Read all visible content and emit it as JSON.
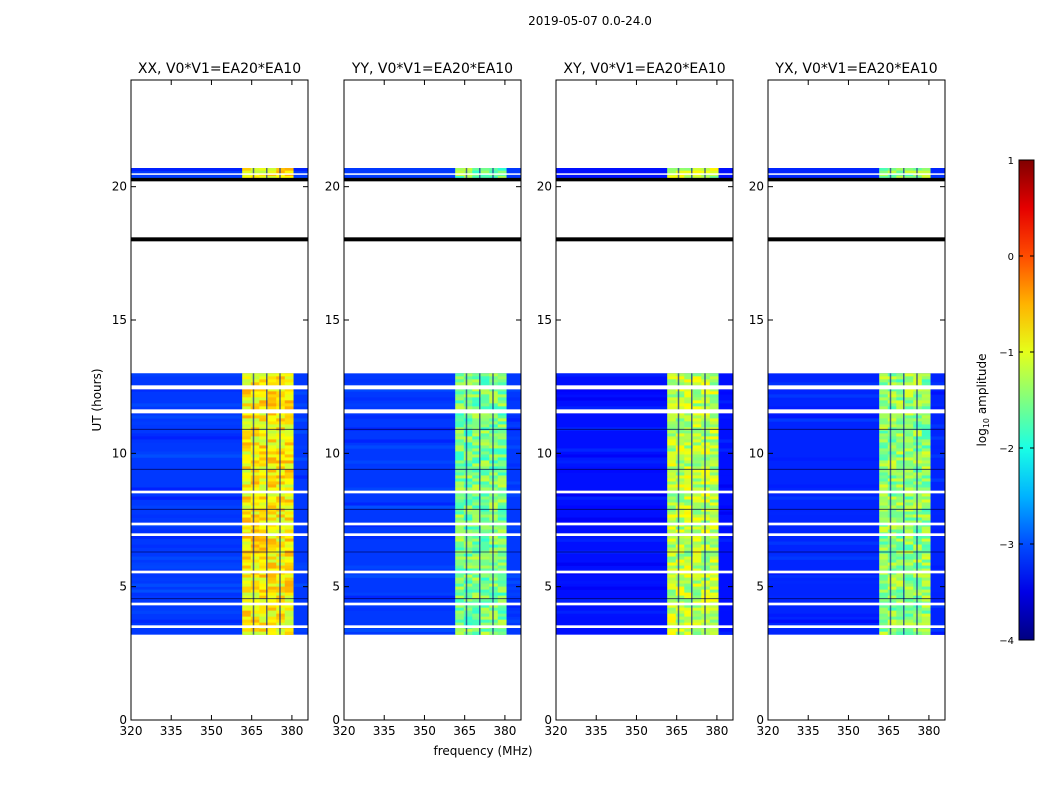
{
  "suptitle": "2019-05-07 0.0-24.0",
  "chart_data": {
    "type": "heatmap",
    "title": "2019-05-07 0.0-24.0",
    "xlabel": "frequency (MHz)",
    "ylabel": "UT (hours)",
    "xlim": [
      320,
      386
    ],
    "ylim": [
      0,
      24
    ],
    "xticks": [
      320,
      335,
      350,
      365,
      380
    ],
    "yticks": [
      0,
      5,
      10,
      15,
      20
    ],
    "colorbar": {
      "label": "log10 amplitude",
      "label_base": "log",
      "label_sub": "10",
      "label_rest": " amplitude",
      "min": -4,
      "max": 1,
      "ticks": [
        -4,
        -3,
        -2,
        -1,
        0,
        1
      ],
      "colormap": "jet"
    },
    "data_time_ranges": [
      [
        3.2,
        13.0
      ],
      [
        20.3,
        20.7
      ]
    ],
    "flagged_bands_hours": [
      17.95,
      18.1,
      20.2,
      20.33
    ],
    "panels": [
      {
        "title": "XX, V0*V1=EA20*EA10",
        "background_log_amp": -3.1,
        "band_log_amp": -0.9,
        "band_mhz": [
          361.5,
          380.5
        ]
      },
      {
        "title": "YY, V0*V1=EA20*EA10",
        "background_log_amp": -3.1,
        "band_log_amp": -1.6,
        "band_mhz": [
          361.5,
          380.5
        ]
      },
      {
        "title": "XY, V0*V1=EA20*EA10",
        "background_log_amp": -3.3,
        "band_log_amp": -1.3,
        "band_mhz": [
          361.5,
          380.5
        ]
      },
      {
        "title": "YX, V0*V1=EA20*EA10",
        "background_log_amp": -3.2,
        "band_log_amp": -1.5,
        "band_mhz": [
          361.5,
          380.5
        ]
      }
    ]
  }
}
